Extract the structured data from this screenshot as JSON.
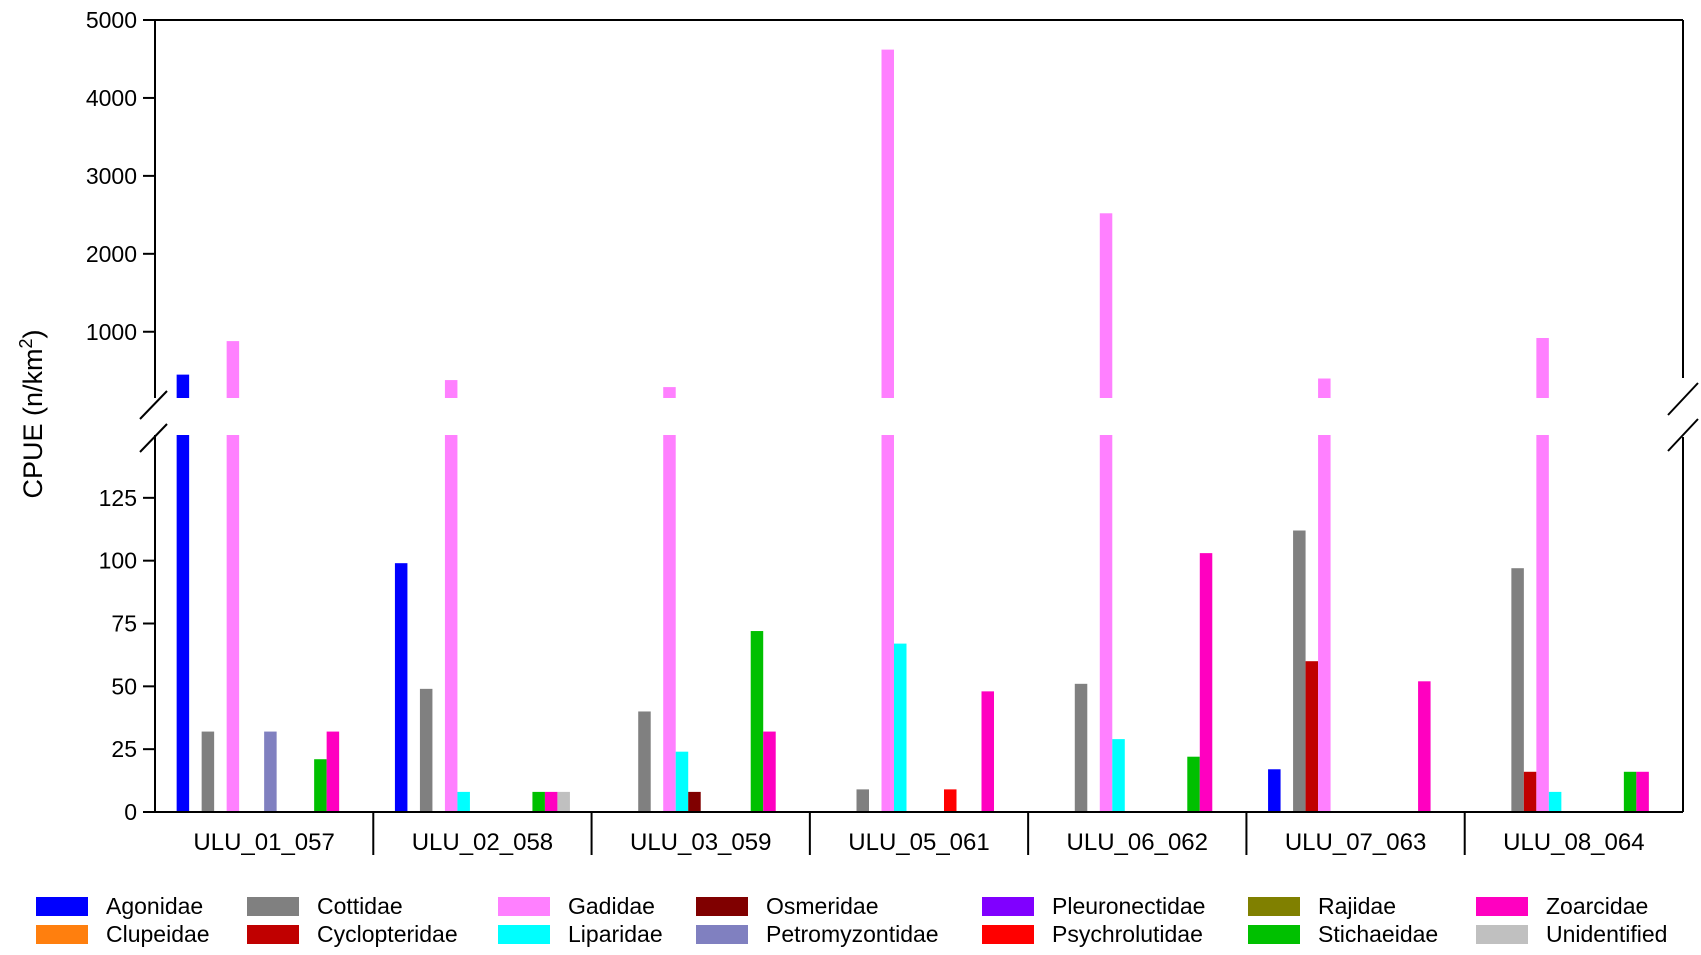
{
  "chart_data": {
    "type": "bar",
    "ylabel": "CPUE (n/km²)",
    "categories": [
      "ULU_01_057",
      "ULU_02_058",
      "ULU_03_059",
      "ULU_05_061",
      "ULU_06_062",
      "ULU_07_063",
      "ULU_08_064"
    ],
    "axis_break": {
      "lower_range": [
        0,
        150
      ],
      "upper_range": [
        150,
        5000
      ]
    },
    "lower_ticks": [
      0,
      25,
      50,
      75,
      100,
      125
    ],
    "upper_ticks": [
      1000,
      2000,
      3000,
      4000,
      5000
    ],
    "legend_placement": "bottom",
    "grid": false,
    "series": [
      {
        "name": "Agonidae",
        "color": "#0000ff",
        "values": [
          450,
          99,
          0,
          0,
          0,
          17,
          0
        ]
      },
      {
        "name": "Clupeidae",
        "color": "#ff7f0e",
        "values": [
          0,
          0,
          0,
          0,
          0,
          0,
          0
        ]
      },
      {
        "name": "Cottidae",
        "color": "#808080",
        "values": [
          32,
          49,
          40,
          9,
          51,
          112,
          97
        ]
      },
      {
        "name": "Cyclopteridae",
        "color": "#c00000",
        "values": [
          0,
          0,
          0,
          0,
          0,
          60,
          16
        ]
      },
      {
        "name": "Gadidae",
        "color": "#ff80ff",
        "values": [
          880,
          380,
          290,
          4620,
          2520,
          400,
          920
        ]
      },
      {
        "name": "Liparidae",
        "color": "#00ffff",
        "values": [
          0,
          8,
          24,
          67,
          29,
          0,
          8
        ]
      },
      {
        "name": "Osmeridae",
        "color": "#800000",
        "values": [
          0,
          0,
          8,
          0,
          0,
          0,
          0
        ]
      },
      {
        "name": "Petromyzontidae",
        "color": "#8080c0",
        "values": [
          32,
          0,
          0,
          0,
          0,
          0,
          0
        ]
      },
      {
        "name": "Pleuronectidae",
        "color": "#8000ff",
        "values": [
          0,
          0,
          0,
          0,
          0,
          0,
          0
        ]
      },
      {
        "name": "Psychrolutidae",
        "color": "#ff0000",
        "values": [
          0,
          0,
          0,
          9,
          0,
          0,
          0
        ]
      },
      {
        "name": "Rajidae",
        "color": "#808000",
        "values": [
          0,
          0,
          0,
          0,
          0,
          0,
          0
        ]
      },
      {
        "name": "Stichaeidae",
        "color": "#00c000",
        "values": [
          21,
          8,
          72,
          0,
          22,
          0,
          16
        ]
      },
      {
        "name": "Zoarcidae",
        "color": "#ff00c0",
        "values": [
          32,
          8,
          32,
          48,
          103,
          52,
          16
        ]
      },
      {
        "name": "Unidentified",
        "color": "#c0c0c0",
        "values": [
          0,
          8,
          0,
          0,
          0,
          0,
          0
        ]
      }
    ]
  }
}
